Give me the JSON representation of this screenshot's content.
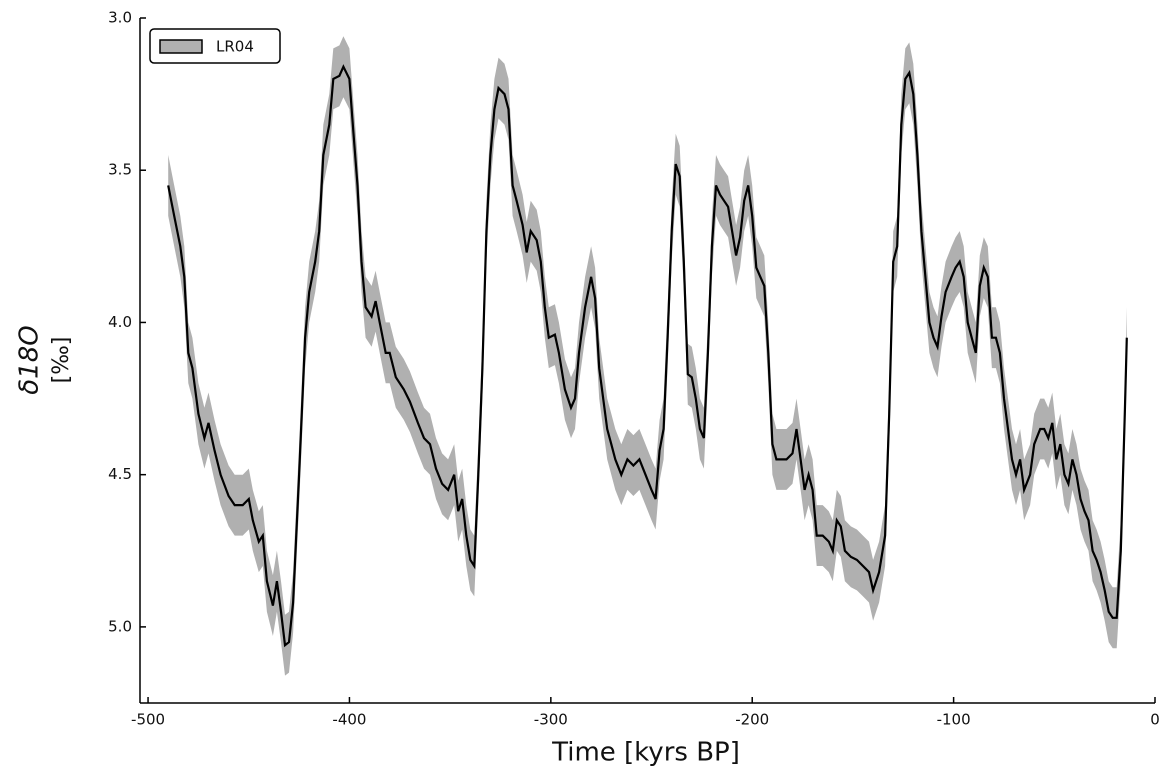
{
  "chart_data": {
    "type": "line-band",
    "xlabel": "Time [kyrs BP]",
    "ylabel": "δ18O",
    "ylabel_unit": "[‰]",
    "x": [
      -490,
      -487,
      -484,
      -482,
      -480,
      -478,
      -475,
      -472,
      -470,
      -467,
      -464,
      -460,
      -457,
      -453,
      -450,
      -448,
      -445,
      -443,
      -441,
      -438,
      -436,
      -434,
      -432,
      -430,
      -428,
      -425,
      -422,
      -420,
      -417,
      -415,
      -413,
      -410,
      -408,
      -405,
      -403,
      -400,
      -398,
      -396,
      -394,
      -392,
      -389,
      -387,
      -385,
      -382,
      -380,
      -377,
      -373,
      -370,
      -366,
      -363,
      -360,
      -357,
      -354,
      -351,
      -348,
      -346,
      -344,
      -342,
      -340,
      -338,
      -336,
      -334,
      -332,
      -330,
      -328,
      -326,
      -323,
      -321,
      -319,
      -317,
      -314,
      -312,
      -310,
      -307,
      -305,
      -303,
      -301,
      -298,
      -296,
      -293,
      -290,
      -288,
      -286,
      -283,
      -280,
      -278,
      -276,
      -274,
      -272,
      -270,
      -268,
      -265,
      -262,
      -259,
      -256,
      -253,
      -250,
      -248,
      -246,
      -244,
      -242,
      -240,
      -238,
      -236,
      -234,
      -232,
      -230,
      -228,
      -226,
      -224,
      -222,
      -220,
      -218,
      -216,
      -214,
      -212,
      -210,
      -208,
      -206,
      -204,
      -202,
      -200,
      -198,
      -196,
      -194,
      -192,
      -190,
      -188,
      -186,
      -183,
      -180,
      -178,
      -176,
      -174,
      -172,
      -170,
      -168,
      -165,
      -162,
      -160,
      -158,
      -156,
      -154,
      -151,
      -148,
      -145,
      -142,
      -140,
      -137,
      -134,
      -132,
      -130,
      -128,
      -126,
      -124,
      -122,
      -120,
      -118,
      -116,
      -114,
      -112,
      -110,
      -108,
      -106,
      -104,
      -101,
      -99,
      -97,
      -95,
      -93,
      -91,
      -89,
      -87,
      -85,
      -83,
      -81,
      -79,
      -77,
      -75,
      -73,
      -71,
      -69,
      -67,
      -65,
      -62,
      -60,
      -57,
      -55,
      -53,
      -51,
      -49,
      -47,
      -45,
      -43,
      -41,
      -39,
      -37,
      -35,
      -33,
      -31,
      -29,
      -27,
      -25,
      -23,
      -21,
      -19,
      -17,
      -15,
      -14
    ],
    "series": [
      {
        "name": "LR04",
        "color": "#000000",
        "band_color": "#b0b0b0",
        "error": 0.1,
        "values": [
          3.55,
          3.65,
          3.75,
          3.85,
          4.1,
          4.15,
          4.3,
          4.38,
          4.33,
          4.42,
          4.5,
          4.57,
          4.6,
          4.6,
          4.58,
          4.65,
          4.72,
          4.7,
          4.85,
          4.93,
          4.85,
          4.95,
          5.06,
          5.05,
          4.92,
          4.5,
          4.05,
          3.9,
          3.8,
          3.7,
          3.45,
          3.35,
          3.2,
          3.19,
          3.16,
          3.2,
          3.38,
          3.55,
          3.8,
          3.95,
          3.98,
          3.93,
          4.0,
          4.1,
          4.1,
          4.18,
          4.22,
          4.26,
          4.33,
          4.38,
          4.4,
          4.48,
          4.53,
          4.55,
          4.5,
          4.62,
          4.58,
          4.7,
          4.78,
          4.8,
          4.5,
          4.15,
          3.7,
          3.45,
          3.3,
          3.23,
          3.25,
          3.3,
          3.55,
          3.6,
          3.68,
          3.77,
          3.7,
          3.73,
          3.8,
          3.95,
          4.05,
          4.04,
          4.1,
          4.22,
          4.28,
          4.25,
          4.1,
          3.95,
          3.85,
          3.92,
          4.15,
          4.25,
          4.35,
          4.4,
          4.45,
          4.5,
          4.45,
          4.47,
          4.45,
          4.5,
          4.55,
          4.58,
          4.42,
          4.35,
          4.05,
          3.7,
          3.48,
          3.52,
          3.8,
          4.17,
          4.18,
          4.25,
          4.35,
          4.38,
          4.1,
          3.75,
          3.55,
          3.58,
          3.6,
          3.62,
          3.7,
          3.78,
          3.72,
          3.6,
          3.55,
          3.65,
          3.82,
          3.85,
          3.88,
          4.1,
          4.4,
          4.45,
          4.45,
          4.45,
          4.43,
          4.35,
          4.45,
          4.55,
          4.5,
          4.55,
          4.7,
          4.7,
          4.72,
          4.75,
          4.65,
          4.67,
          4.75,
          4.77,
          4.78,
          4.8,
          4.82,
          4.88,
          4.82,
          4.7,
          4.3,
          3.8,
          3.75,
          3.35,
          3.2,
          3.18,
          3.25,
          3.45,
          3.7,
          3.85,
          4.0,
          4.05,
          4.08,
          3.98,
          3.9,
          3.85,
          3.82,
          3.8,
          3.85,
          4.0,
          4.05,
          4.1,
          3.88,
          3.82,
          3.85,
          4.05,
          4.05,
          4.1,
          4.25,
          4.35,
          4.45,
          4.5,
          4.45,
          4.55,
          4.5,
          4.4,
          4.35,
          4.35,
          4.38,
          4.33,
          4.45,
          4.4,
          4.5,
          4.53,
          4.45,
          4.5,
          4.58,
          4.62,
          4.65,
          4.75,
          4.78,
          4.82,
          4.88,
          4.95,
          4.97,
          4.97,
          4.75,
          4.3,
          4.05
        ]
      }
    ],
    "xlim": [
      -504,
      0
    ],
    "ylim": [
      3.0,
      5.25
    ],
    "y_inverted": true,
    "xticks": [
      -500,
      -400,
      -300,
      -200,
      -100,
      0
    ],
    "yticks": [
      {
        "value": 3,
        "label": "3.0"
      },
      {
        "value": 3.5,
        "label": "3.5"
      },
      {
        "value": 4,
        "label": "4.0"
      },
      {
        "value": 4.5,
        "label": "4.5"
      },
      {
        "value": 5,
        "label": "5.0"
      }
    ],
    "grid": false,
    "legend": "upper-left"
  }
}
